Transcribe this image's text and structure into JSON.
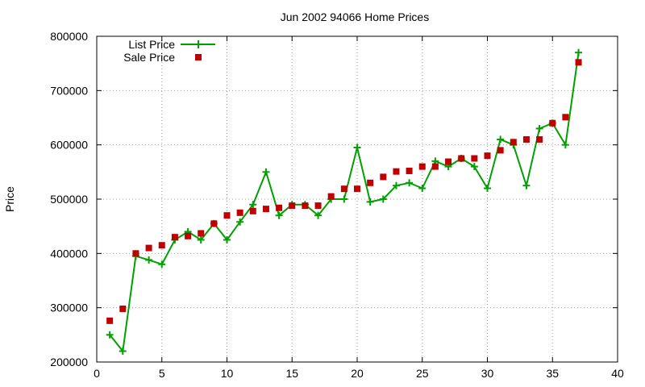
{
  "chart_data": {
    "type": "line",
    "title": "Jun 2002 94066 Home Prices",
    "xlabel": "",
    "ylabel": "Price",
    "xlim": [
      0,
      40
    ],
    "ylim": [
      200000,
      800000
    ],
    "xticks": [
      0,
      5,
      10,
      15,
      20,
      25,
      30,
      35,
      40
    ],
    "yticks": [
      200000,
      300000,
      400000,
      500000,
      600000,
      700000,
      800000
    ],
    "grid": true,
    "legend_position": "top-left",
    "series": [
      {
        "name": "List Price",
        "style": "lines-and-points",
        "marker": "plus",
        "color": "#00a000",
        "x": [
          1,
          2,
          3,
          4,
          5,
          6,
          7,
          8,
          9,
          10,
          11,
          12,
          13,
          14,
          15,
          16,
          17,
          18,
          19,
          20,
          21,
          22,
          23,
          24,
          25,
          26,
          27,
          28,
          29,
          30,
          31,
          32,
          33,
          34,
          35,
          36,
          37
        ],
        "y": [
          250000,
          220000,
          395000,
          388000,
          380000,
          425000,
          440000,
          425000,
          455000,
          425000,
          458000,
          490000,
          550000,
          470000,
          490000,
          490000,
          470000,
          500000,
          500000,
          595000,
          495000,
          500000,
          525000,
          530000,
          520000,
          570000,
          560000,
          575000,
          560000,
          520000,
          610000,
          600000,
          525000,
          630000,
          640000,
          600000,
          770000
        ]
      },
      {
        "name": "Sale Price",
        "style": "points",
        "marker": "square",
        "color": "#c00000",
        "x": [
          1,
          2,
          3,
          4,
          5,
          6,
          7,
          8,
          9,
          10,
          11,
          12,
          13,
          14,
          15,
          16,
          17,
          18,
          19,
          20,
          21,
          22,
          23,
          24,
          25,
          26,
          27,
          28,
          29,
          30,
          31,
          32,
          33,
          34,
          35,
          36,
          37
        ],
        "y": [
          276000,
          298000,
          400000,
          410000,
          415000,
          430000,
          432000,
          437000,
          455000,
          470000,
          475000,
          478000,
          482000,
          484000,
          488000,
          488000,
          488000,
          505000,
          519000,
          519000,
          530000,
          541000,
          551000,
          552000,
          560000,
          560000,
          569000,
          575000,
          575000,
          580000,
          590000,
          605000,
          610000,
          610000,
          640000,
          651000,
          752000
        ]
      }
    ]
  }
}
